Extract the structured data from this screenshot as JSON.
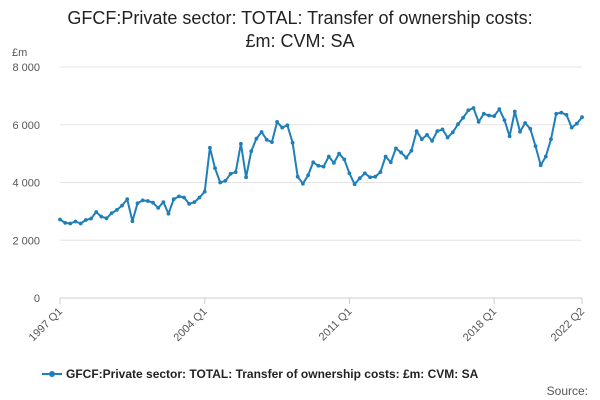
{
  "chart_data": {
    "type": "line",
    "title_line1": "GFCF:Private sector: TOTAL: Transfer of ownership costs:",
    "title_line2": "£m: CVM: SA",
    "ylabel": "£m",
    "xlabel": "",
    "ylim": [
      0,
      8000
    ],
    "y_ticks": [
      {
        "value": 0,
        "label": "0"
      },
      {
        "value": 2000,
        "label": "2 000"
      },
      {
        "value": 4000,
        "label": "4 000"
      },
      {
        "value": 6000,
        "label": "6 000"
      },
      {
        "value": 8000,
        "label": "8 000"
      }
    ],
    "x_ticks": [
      {
        "index": 0,
        "label": "1997 Q1"
      },
      {
        "index": 28,
        "label": "2004 Q1"
      },
      {
        "index": 56,
        "label": "2011 Q1"
      },
      {
        "index": 84,
        "label": "2018 Q1"
      },
      {
        "index": 101,
        "label": "2022 Q2"
      }
    ],
    "grid": "horizontal",
    "legend_position": "bottom",
    "series": [
      {
        "name": "GFCF:Private sector: TOTAL: Transfer of ownership costs: £m: CVM: SA",
        "color": "#1f7fb8",
        "start_period": "1997 Q1",
        "end_period": "2022 Q2",
        "values": [
          2720,
          2600,
          2580,
          2650,
          2580,
          2700,
          2750,
          2980,
          2820,
          2760,
          2940,
          3050,
          3200,
          3420,
          2660,
          3280,
          3380,
          3360,
          3300,
          3120,
          3320,
          2920,
          3420,
          3520,
          3480,
          3260,
          3320,
          3480,
          3680,
          5200,
          4500,
          4000,
          4060,
          4300,
          4360,
          5340,
          4180,
          5080,
          5520,
          5750,
          5480,
          5400,
          6100,
          5900,
          5980,
          5380,
          4200,
          3960,
          4250,
          4700,
          4580,
          4550,
          4900,
          4680,
          5000,
          4800,
          4320,
          3940,
          4150,
          4320,
          4180,
          4200,
          4360,
          4900,
          4700,
          5180,
          5040,
          4860,
          5100,
          5780,
          5500,
          5650,
          5440,
          5780,
          5840,
          5560,
          5740,
          6020,
          6240,
          6500,
          6580,
          6100,
          6380,
          6320,
          6300,
          6540,
          6160,
          5600,
          6460,
          5760,
          6060,
          5860,
          5260,
          4600,
          4900,
          5500,
          6380,
          6420,
          6340,
          5900,
          6040,
          6260
        ]
      }
    ],
    "legend_label": "GFCF:Private sector: TOTAL: Transfer of ownership costs: £m: CVM: SA",
    "source_label": "Source:"
  }
}
